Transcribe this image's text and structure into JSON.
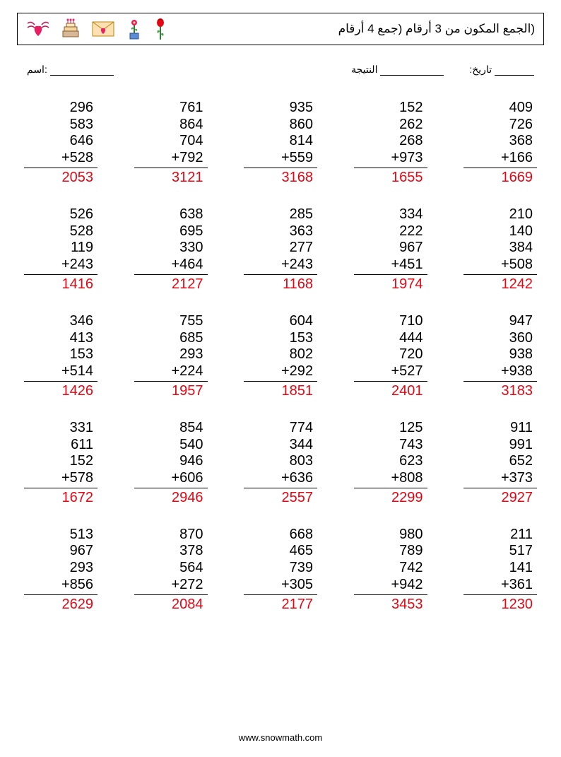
{
  "title": "(الجمع المكون من 3 أرقام (جمع 4 أرقام",
  "labels": {
    "name": "اسم:",
    "score": "النتيجة",
    "date": ":تاريخ"
  },
  "footer": "www.snowmath.com",
  "icons": [
    "wing-heart",
    "cake",
    "love-letter",
    "potted-flower",
    "rose"
  ],
  "colors": {
    "answer": "#e30613",
    "text": "#000000",
    "bg": "#ffffff"
  },
  "typography": {
    "num_fontsize": 20,
    "title_fontsize": 17,
    "label_fontsize": 14,
    "footer_fontsize": 13
  },
  "problems": [
    [
      {
        "nums": [
          296,
          583,
          646,
          528
        ],
        "ans": 2053
      },
      {
        "nums": [
          761,
          864,
          704,
          792
        ],
        "ans": 3121
      },
      {
        "nums": [
          935,
          860,
          814,
          559
        ],
        "ans": 3168
      },
      {
        "nums": [
          152,
          262,
          268,
          973
        ],
        "ans": 1655
      },
      {
        "nums": [
          409,
          726,
          368,
          166
        ],
        "ans": 1669
      }
    ],
    [
      {
        "nums": [
          526,
          528,
          119,
          243
        ],
        "ans": 1416
      },
      {
        "nums": [
          638,
          695,
          330,
          464
        ],
        "ans": 2127
      },
      {
        "nums": [
          285,
          363,
          277,
          243
        ],
        "ans": 1168
      },
      {
        "nums": [
          334,
          222,
          967,
          451
        ],
        "ans": 1974
      },
      {
        "nums": [
          210,
          140,
          384,
          508
        ],
        "ans": 1242
      }
    ],
    [
      {
        "nums": [
          346,
          413,
          153,
          514
        ],
        "ans": 1426
      },
      {
        "nums": [
          755,
          685,
          293,
          224
        ],
        "ans": 1957
      },
      {
        "nums": [
          604,
          153,
          802,
          292
        ],
        "ans": 1851
      },
      {
        "nums": [
          710,
          444,
          720,
          527
        ],
        "ans": 2401
      },
      {
        "nums": [
          947,
          360,
          938,
          938
        ],
        "ans": 3183
      }
    ],
    [
      {
        "nums": [
          331,
          611,
          152,
          578
        ],
        "ans": 1672
      },
      {
        "nums": [
          854,
          540,
          946,
          606
        ],
        "ans": 2946
      },
      {
        "nums": [
          774,
          344,
          803,
          636
        ],
        "ans": 2557
      },
      {
        "nums": [
          125,
          743,
          623,
          808
        ],
        "ans": 2299
      },
      {
        "nums": [
          911,
          991,
          652,
          373
        ],
        "ans": 2927
      }
    ],
    [
      {
        "nums": [
          513,
          967,
          293,
          856
        ],
        "ans": 2629
      },
      {
        "nums": [
          870,
          378,
          564,
          272
        ],
        "ans": 2084
      },
      {
        "nums": [
          668,
          465,
          739,
          305
        ],
        "ans": 2177
      },
      {
        "nums": [
          980,
          789,
          742,
          942
        ],
        "ans": 3453
      },
      {
        "nums": [
          211,
          517,
          141,
          361
        ],
        "ans": 1230
      }
    ]
  ]
}
